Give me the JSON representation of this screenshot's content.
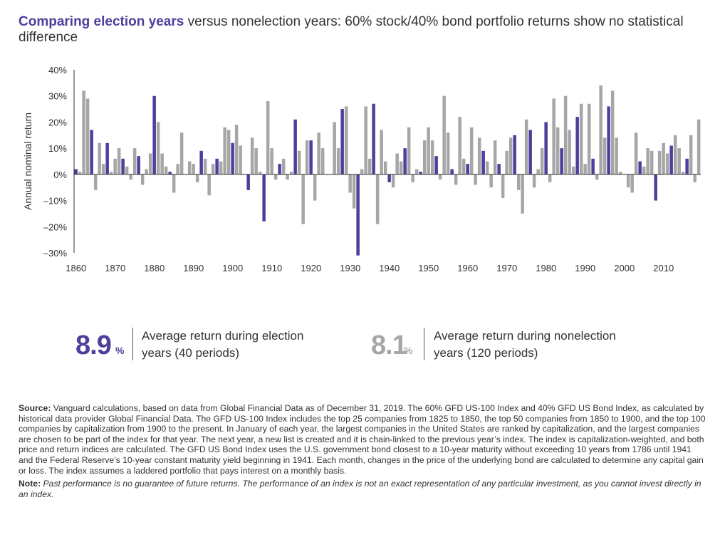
{
  "header": {
    "title_bold": "Comparing election years",
    "title_rest": " versus nonelection years: 60% stock/40% bond portfolio returns show no statistical difference"
  },
  "stats": {
    "election": {
      "value": "8.9",
      "unit": "%",
      "label": "Average return during election years (40 periods)"
    },
    "nonelection": {
      "value": "8.1",
      "unit": "%",
      "label": "Average return during nonelection years (120 periods)"
    }
  },
  "notes": {
    "source_label": "Source:",
    "source_text": " Vanguard calculations, based on data from Global Financial Data as of December 31, 2019. The 60% GFD US-100 Index and 40% GFD US Bond Index, as calculated by historical data provider Global Financial Data. The GFD US-100 Index includes the top 25 companies from 1825 to 1850, the top 50 companies from 1850 to 1900, and the top 100 companies by capitalization from 1900 to the present. In January of each year, the largest companies in the United States are ranked by capitalization, and the largest companies are chosen to be part of the index for that year. The next year, a new list is created and it is chain-linked to the previous year’s index. The index is capitalization-weighted, and both price and return indices are calculated. The GFD US Bond Index uses the U.S. government bond closest to a 10-year maturity without exceeding 10 years from 1786 until 1941 and the Federal Reserve’s 10-year constant maturity yield beginning in 1941. Each month, changes in the price of the underlying bond are calculated to determine any capital gain or loss. The index assumes a laddered portfolio that pays interest on a monthly basis.",
    "note_label": "Note:",
    "note_text": " Past performance is no guarantee of future returns. The performance of an index is not an exact representation of any particular investment, as you cannot invest directly in an index."
  },
  "chart_data": {
    "type": "bar",
    "ylabel": "Annual nominal return",
    "ylim": [
      -30,
      40
    ],
    "yticks": [
      40,
      30,
      20,
      10,
      0,
      -10,
      -20,
      -30
    ],
    "ytick_labels": [
      "40%",
      "30%",
      "20%",
      "10%",
      "0%",
      "–10%",
      "–20%",
      "–30%"
    ],
    "xticks": [
      1860,
      1870,
      1880,
      1890,
      1900,
      1910,
      1920,
      1930,
      1940,
      1950,
      1960,
      1970,
      1980,
      1990,
      2000,
      2010
    ],
    "x_start": 1860,
    "x_end": 2019,
    "colors": {
      "election": "#4d3f9b",
      "nonelection": "#a6a6a6",
      "axis": "#333333"
    },
    "series": [
      {
        "name": "election",
        "color": "#4d3f9b"
      },
      {
        "name": "nonelection",
        "color": "#a6a6a6"
      }
    ],
    "values": [
      2,
      1,
      32,
      29,
      17,
      -6,
      12,
      4,
      12,
      1,
      6,
      10,
      6,
      3,
      -2,
      10,
      7,
      -4,
      2,
      8,
      30,
      20,
      8,
      3,
      1,
      -7,
      4,
      16,
      0,
      5,
      4,
      -3,
      9,
      6,
      -8,
      4,
      6,
      5,
      18,
      17,
      12,
      19,
      11,
      0,
      -6,
      14,
      10,
      1,
      -18,
      28,
      10,
      -2,
      4,
      6,
      -2,
      1,
      21,
      9,
      -19,
      13,
      13,
      -10,
      16,
      10,
      0,
      0,
      20,
      10,
      25,
      26,
      -7,
      -13,
      -31,
      2,
      26,
      6,
      27,
      -19,
      17,
      5,
      -3,
      -5,
      8,
      5,
      10,
      18,
      -3,
      2,
      1,
      13,
      18,
      13,
      7,
      -2,
      30,
      16,
      2,
      -4,
      22,
      6,
      4,
      18,
      -4,
      14,
      9,
      5,
      -5,
      13,
      4,
      -9,
      9,
      14,
      15,
      -6,
      -15,
      21,
      17,
      -5,
      2,
      10,
      20,
      -3,
      29,
      18,
      10,
      30,
      17,
      3,
      22,
      27,
      4,
      27,
      6,
      -2,
      34,
      14,
      26,
      32,
      14,
      1,
      0,
      -5,
      -7,
      16,
      5,
      3,
      10,
      9,
      -10,
      9,
      12,
      8,
      11,
      15,
      10,
      1,
      6,
      15,
      -3,
      21
    ],
    "election_years": [
      1860,
      1864,
      1868,
      1872,
      1876,
      1880,
      1884,
      1888,
      1892,
      1896,
      1900,
      1904,
      1908,
      1912,
      1916,
      1920,
      1924,
      1928,
      1932,
      1936,
      1940,
      1944,
      1948,
      1952,
      1956,
      1960,
      1964,
      1968,
      1972,
      1976,
      1980,
      1984,
      1988,
      1992,
      1996,
      2000,
      2004,
      2008,
      2012,
      2016
    ]
  }
}
